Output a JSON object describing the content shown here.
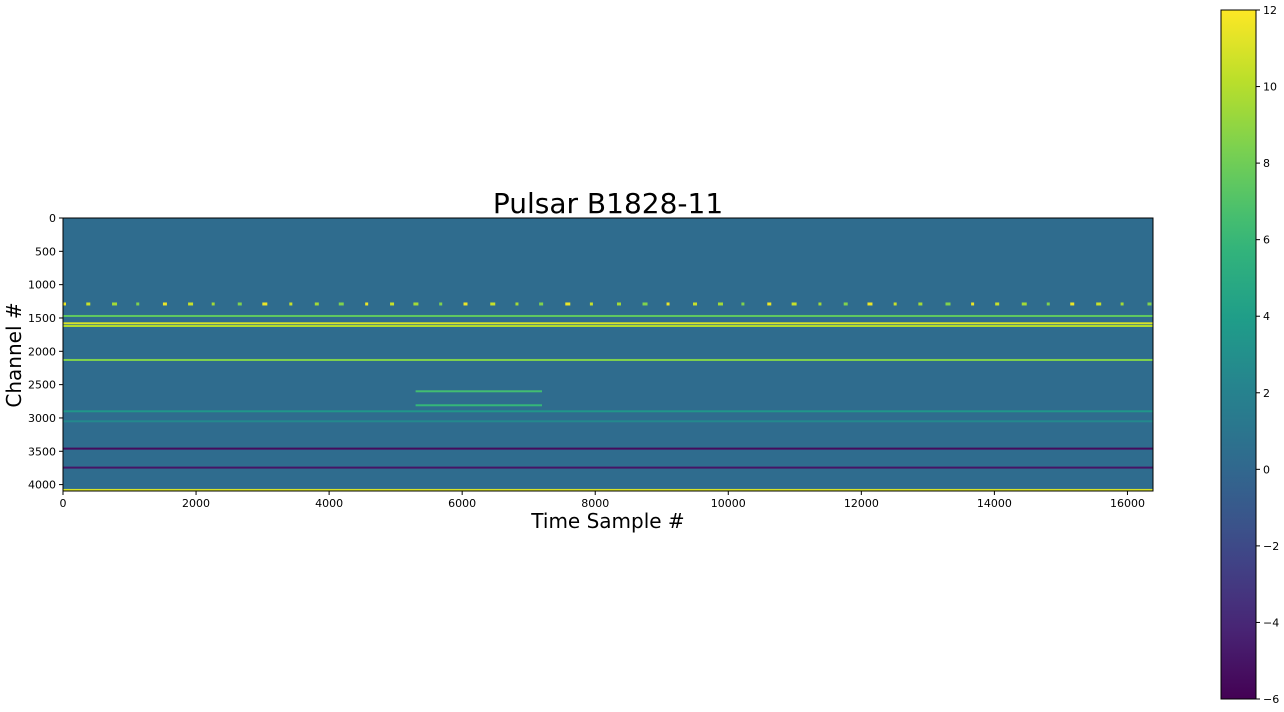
{
  "chart_data": {
    "type": "heatmap",
    "title": "Pulsar B1828-11",
    "xlabel": "Time Sample #",
    "ylabel": "Channel #",
    "xlim": [
      0,
      16384
    ],
    "ylim": [
      4096,
      0
    ],
    "x_ticks": [
      0,
      2000,
      4000,
      6000,
      8000,
      10000,
      12000,
      14000,
      16000
    ],
    "y_ticks": [
      0,
      500,
      1000,
      1500,
      2000,
      2500,
      3000,
      3500,
      4000
    ],
    "colorbar": {
      "range": [
        -6,
        12
      ],
      "ticks": [
        12,
        10,
        8,
        6,
        4,
        2,
        0,
        -2,
        -4,
        -6
      ],
      "tick_labels": [
        "12",
        "10",
        "8",
        "6",
        "4",
        "2",
        "0",
        "−2",
        "−4",
        "−6"
      ],
      "colormap": "viridis"
    },
    "background_value": 0.3,
    "horizontal_bands": [
      {
        "channel": 1290,
        "value": 11.5,
        "pulsed": true
      },
      {
        "channel": 1470,
        "value": 7.5
      },
      {
        "channel": 1580,
        "value": 11
      },
      {
        "channel": 1620,
        "value": 10
      },
      {
        "channel": 2130,
        "value": 8.5
      },
      {
        "channel": 2600,
        "value": 6.5,
        "x_range": [
          5300,
          7200
        ]
      },
      {
        "channel": 2810,
        "value": 6,
        "x_range": [
          5300,
          7200
        ]
      },
      {
        "channel": 2900,
        "value": 3.5
      },
      {
        "channel": 3050,
        "value": 2.5
      },
      {
        "channel": 3460,
        "value": -5.5
      },
      {
        "channel": 3745,
        "value": -5
      },
      {
        "channel": 4080,
        "value": 11
      }
    ]
  }
}
